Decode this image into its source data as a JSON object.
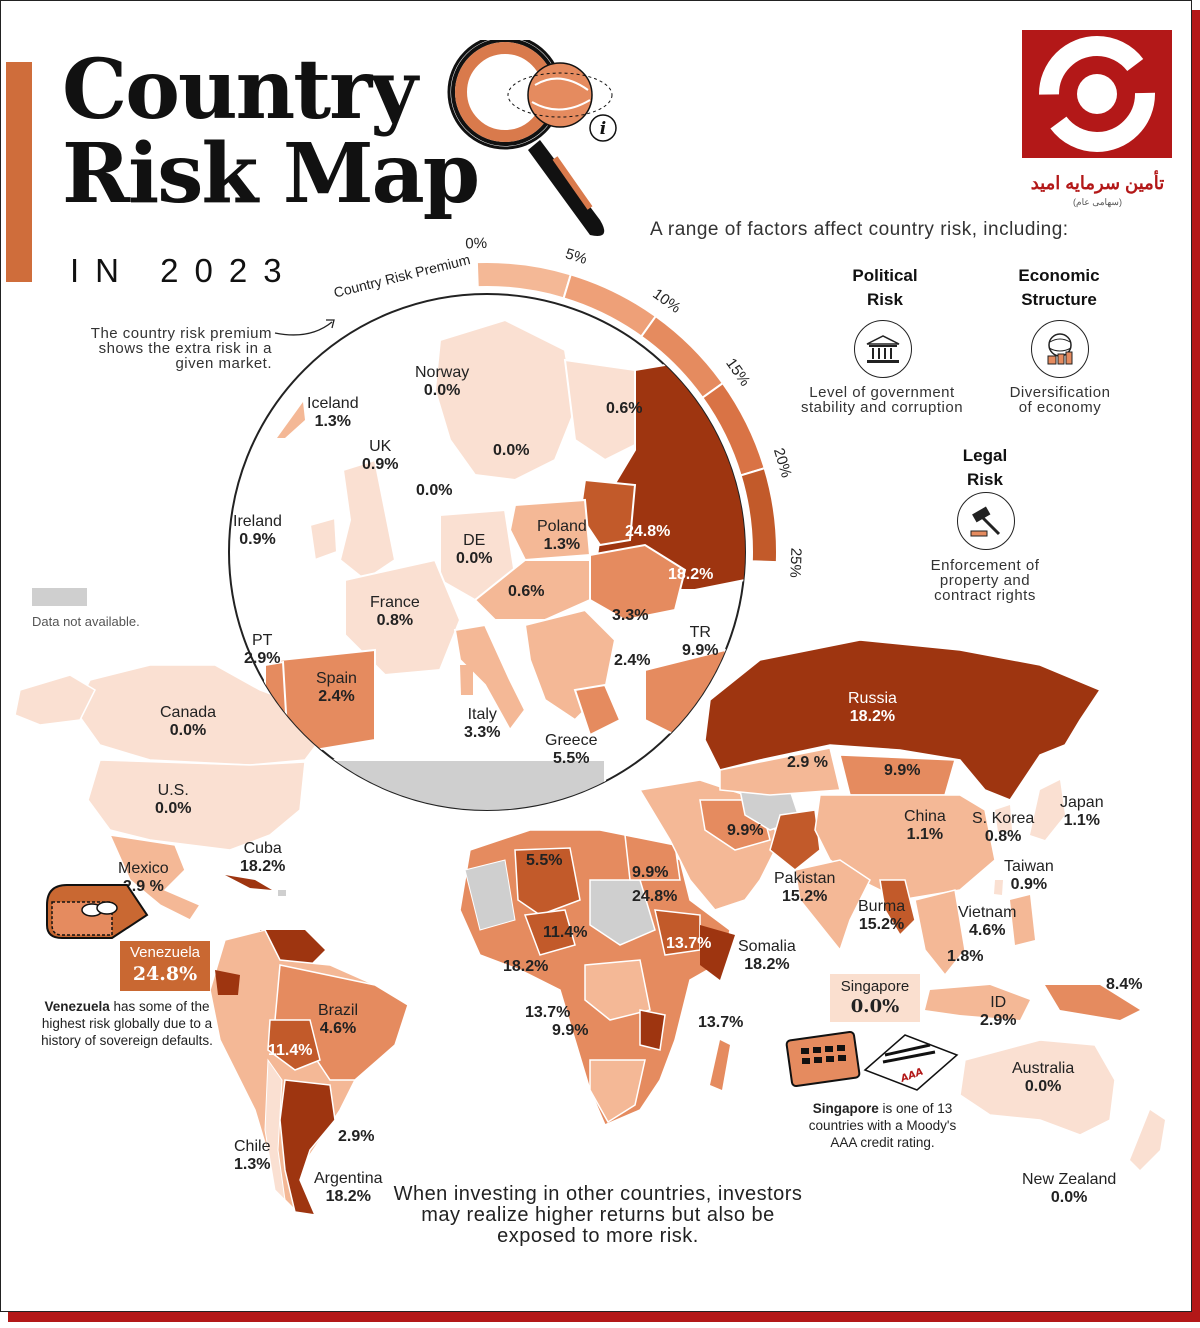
{
  "title_line1": "Country",
  "title_line2": "Risk Map",
  "subtitle": "IN 2023",
  "intro": "A range of factors affect country risk, including:",
  "premium_note": "The country risk premium shows the extra risk in a given market.",
  "premium_label": "Country Risk Premium",
  "data_na": "Data not available.",
  "scale": [
    {
      "label": "0%",
      "value": 0
    },
    {
      "label": "5%",
      "value": 5
    },
    {
      "label": "10%",
      "value": 10
    },
    {
      "label": "15%",
      "value": 15
    },
    {
      "label": "20%",
      "value": 20
    },
    {
      "label": "25%",
      "value": 25
    }
  ],
  "factors": [
    {
      "title1": "Political",
      "title2": "Risk",
      "icon": "government-building-icon",
      "desc1": "Level of government",
      "desc2": "stability and corruption"
    },
    {
      "title1": "Economic",
      "title2": "Structure",
      "icon": "globe-coins-icon",
      "desc1": "Diversification",
      "desc2": "of economy"
    },
    {
      "title1": "Legal",
      "title2": "Risk",
      "icon": "gavel-icon",
      "desc1": "Enforcement of",
      "desc2": "property and",
      "desc3": "contract rights"
    }
  ],
  "logo_text": "تأمین سرمایه امید",
  "logo_sub": "(سهامی عام)",
  "europe": [
    {
      "name": "Norway",
      "value": "0.0%"
    },
    {
      "name": "",
      "value": "0.6%"
    },
    {
      "name": "Iceland",
      "value": "1.3%"
    },
    {
      "name": "",
      "value": "0.0%"
    },
    {
      "name": "UK",
      "value": "0.9%"
    },
    {
      "name": "",
      "value": "0.0%"
    },
    {
      "name": "Ireland",
      "value": "0.9%"
    },
    {
      "name": "Poland",
      "value": "1.3%"
    },
    {
      "name": "",
      "value": "24.8%"
    },
    {
      "name": "DE",
      "value": "0.0%"
    },
    {
      "name": "",
      "value": "18.2%"
    },
    {
      "name": "",
      "value": "0.6%"
    },
    {
      "name": "France",
      "value": "0.8%"
    },
    {
      "name": "",
      "value": "3.3%"
    },
    {
      "name": "PT",
      "value": "2.9%"
    },
    {
      "name": "TR",
      "value": "9.9%"
    },
    {
      "name": "",
      "value": "2.4%"
    },
    {
      "name": "Spain",
      "value": "2.4%"
    },
    {
      "name": "Italy",
      "value": "3.3%"
    },
    {
      "name": "Greece",
      "value": "5.5%"
    }
  ],
  "world": [
    {
      "name": "Canada",
      "value": "0.0%"
    },
    {
      "name": "U.S.",
      "value": "0.0%"
    },
    {
      "name": "Mexico",
      "value": "2.9 %"
    },
    {
      "name": "Cuba",
      "value": "18.2%"
    },
    {
      "name": "Brazil",
      "value": "4.6%"
    },
    {
      "name": "",
      "value": "11.4%"
    },
    {
      "name": "",
      "value": "2.9%"
    },
    {
      "name": "Chile",
      "value": "1.3%"
    },
    {
      "name": "Argentina",
      "value": "18.2%"
    },
    {
      "name": "Russia",
      "value": "18.2%"
    },
    {
      "name": "",
      "value": "2.9 %"
    },
    {
      "name": "",
      "value": "9.9%"
    },
    {
      "name": "",
      "value": "9.9%"
    },
    {
      "name": "China",
      "value": "1.1%"
    },
    {
      "name": "S. Korea",
      "value": "0.8%"
    },
    {
      "name": "Japan",
      "value": "1.1%"
    },
    {
      "name": "Taiwan",
      "value": "0.9%"
    },
    {
      "name": "Pakistan",
      "value": "15.2%"
    },
    {
      "name": "Burma",
      "value": "15.2%"
    },
    {
      "name": "Vietnam",
      "value": "4.6%"
    },
    {
      "name": "",
      "value": "1.8%"
    },
    {
      "name": "ID",
      "value": "2.9%"
    },
    {
      "name": "",
      "value": "8.4%"
    },
    {
      "name": "Australia",
      "value": "0.0%"
    },
    {
      "name": "New Zealand",
      "value": "0.0%"
    },
    {
      "name": "",
      "value": "5.5%"
    },
    {
      "name": "",
      "value": "9.9%"
    },
    {
      "name": "",
      "value": "24.8%"
    },
    {
      "name": "",
      "value": "11.4%"
    },
    {
      "name": "",
      "value": "13.7%"
    },
    {
      "name": "Somalia",
      "value": "18.2%"
    },
    {
      "name": "",
      "value": "18.2%"
    },
    {
      "name": "",
      "value": "13.7%"
    },
    {
      "name": "",
      "value": "9.9%"
    },
    {
      "name": "",
      "value": "13.7%"
    }
  ],
  "venezuela": {
    "name": "Venezuela",
    "value": "24.8%",
    "desc_bold": "Venezuela",
    "desc": " has some of the highest risk globally due to a history of sovereign defaults."
  },
  "singapore": {
    "name": "Singapore",
    "value": "0.0%",
    "desc_bold": "Singapore",
    "desc": " is one of 13 countries with a Moody's AAA credit rating.",
    "rating": "AAA"
  },
  "bottom_text": "When investing in other countries, investors may realize higher returns but also be exposed to more risk.",
  "colors": {
    "lightest": "#fae0d2",
    "light": "#f4b896",
    "mid": "#e58b5f",
    "dark": "#c25a2a",
    "darkest": "#9e3510",
    "na": "#cfcfcf",
    "accent": "#cf6d3b",
    "logo": "#b31818"
  }
}
